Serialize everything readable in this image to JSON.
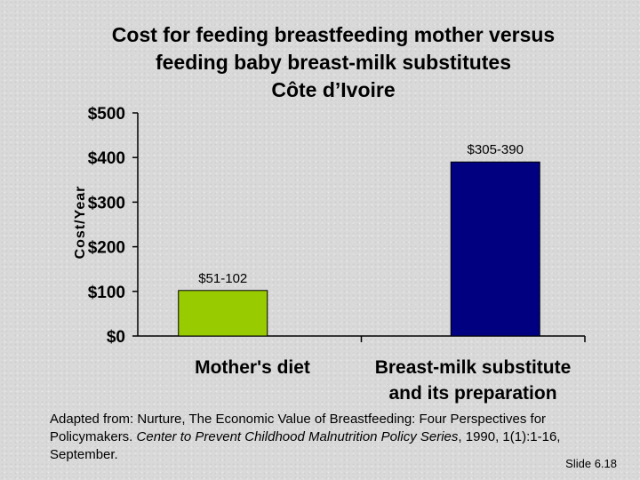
{
  "chart_data": {
    "type": "bar",
    "title": [
      "Cost for feeding breastfeeding mother versus",
      "feeding baby breast-milk substitutes",
      "Côte d’Ivoire"
    ],
    "ylabel": "Cost/Year",
    "xlabel": "",
    "ylim": [
      0,
      500
    ],
    "yticks": [
      0,
      100,
      200,
      300,
      400,
      500
    ],
    "ytick_labels": [
      "$0",
      "$100",
      "$200",
      "$300",
      "$400",
      "$500"
    ],
    "categories": [
      [
        "Mother's diet"
      ],
      [
        "Breast-milk substitute",
        "and its preparation"
      ]
    ],
    "values": [
      102,
      390
    ],
    "data_labels": [
      "$51-102",
      "$305-390"
    ],
    "colors": [
      "#99cc00",
      "#000080"
    ],
    "grid": false,
    "legend": "none"
  },
  "footnote": {
    "part1": "Adapted from: Nurture, The Economic Value of Breastfeeding: Four Perspectives for Policymakers. ",
    "series": "Center to Prevent Childhood Malnutrition Policy Series",
    "part2": ", 1990, 1(1):1-16, September."
  },
  "slide_number": "Slide 6.18"
}
